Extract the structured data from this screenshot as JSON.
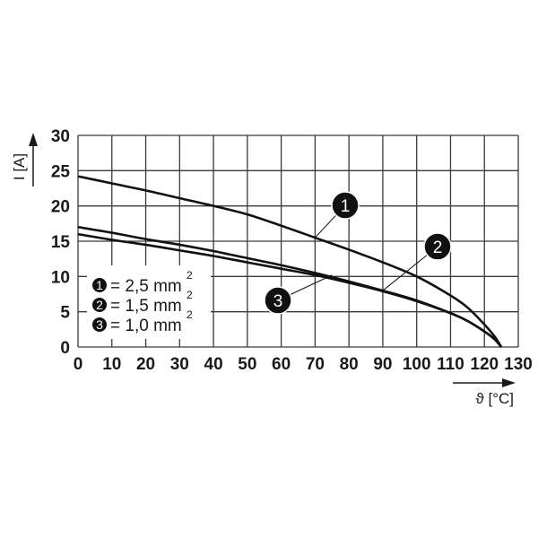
{
  "chart_data": {
    "type": "line",
    "title": "",
    "xlabel": "ϑ [°C]",
    "ylabel": "I [A]",
    "xlim": [
      0,
      130
    ],
    "ylim": [
      0,
      30
    ],
    "x_ticks": [
      "0",
      "10",
      "20",
      "30",
      "40",
      "50",
      "60",
      "70",
      "80",
      "90",
      "100",
      "110",
      "120",
      "130"
    ],
    "y_ticks": [
      "0",
      "5",
      "10",
      "15",
      "20",
      "25",
      "30"
    ],
    "grid": true,
    "legend_position": "lower-left inside plot",
    "legend": [
      {
        "marker": "1",
        "text": "= 2,5 mm",
        "sup": "2"
      },
      {
        "marker": "2",
        "text": "= 1,5 mm",
        "sup": "2"
      },
      {
        "marker": "3",
        "text": "= 1,0 mm",
        "sup": "2"
      }
    ],
    "series": [
      {
        "name": "1 (2,5 mm²)",
        "x": [
          0,
          10,
          20,
          30,
          40,
          50,
          60,
          70,
          80,
          90,
          100,
          110,
          115,
          120,
          123,
          125
        ],
        "values": [
          24.2,
          23.2,
          22.2,
          21.1,
          20.0,
          18.8,
          17.2,
          15.5,
          13.8,
          12.0,
          10.0,
          7.3,
          5.6,
          3.2,
          1.5,
          0
        ]
      },
      {
        "name": "2 (1,5 mm²)",
        "x": [
          0,
          10,
          20,
          30,
          40,
          50,
          60,
          70,
          80,
          90,
          100,
          110,
          115,
          120,
          123,
          125
        ],
        "values": [
          17.0,
          16.2,
          15.3,
          14.5,
          13.6,
          12.6,
          11.6,
          10.5,
          9.3,
          8.0,
          6.6,
          4.8,
          3.7,
          2.2,
          1.1,
          0
        ]
      },
      {
        "name": "3 (1,0 mm²)",
        "x": [
          0,
          10,
          20,
          30,
          40,
          50,
          60,
          70,
          80,
          90,
          100,
          110,
          115,
          120,
          123,
          125
        ],
        "values": [
          16.0,
          15.2,
          14.5,
          13.7,
          12.9,
          12.0,
          11.1,
          10.2,
          9.1,
          7.9,
          6.5,
          4.8,
          3.7,
          2.2,
          1.1,
          0
        ]
      }
    ],
    "callouts": [
      {
        "label": "1",
        "points_to": {
          "x": 70,
          "y": 15.5
        }
      },
      {
        "label": "2",
        "points_to": {
          "x": 90,
          "y": 8.0
        }
      },
      {
        "label": "3",
        "points_to": {
          "x": 75,
          "y": 10.2
        }
      }
    ]
  }
}
